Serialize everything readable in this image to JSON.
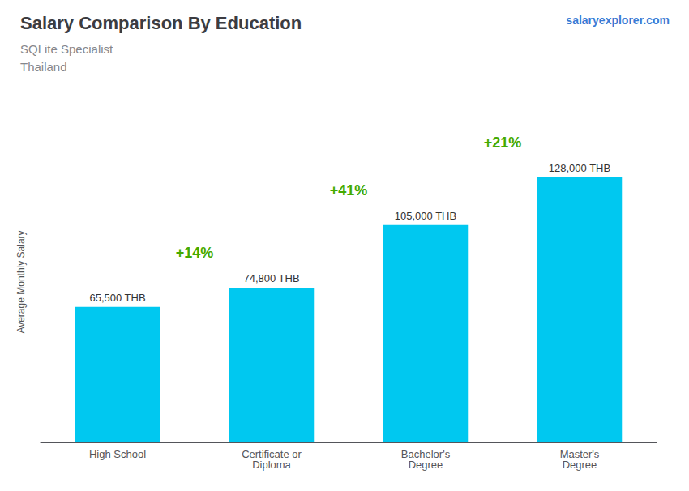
{
  "chart_data": {
    "type": "bar",
    "title": "Salary Comparison By Education",
    "subtitle": [
      "SQLite Specialist",
      "Thailand"
    ],
    "ylabel": "Average Monthly Salary",
    "categories": [
      "High School",
      "Certificate or\nDiploma",
      "Bachelor's\nDegree",
      "Master's\nDegree"
    ],
    "values": [
      65500,
      74800,
      105000,
      128000
    ],
    "value_labels": [
      "65,500 THB",
      "74,800 THB",
      "105,000 THB",
      "128,000 THB"
    ],
    "data_labels": true,
    "color": "#00c8f0",
    "ylim": [
      0,
      155000
    ],
    "yticks": [],
    "tick_labels": "x",
    "grid": false,
    "annotations": {
      "watermark": "salaryexplorer.com",
      "changes": [
        "+14%",
        "+41%",
        "+21%"
      ]
    }
  }
}
